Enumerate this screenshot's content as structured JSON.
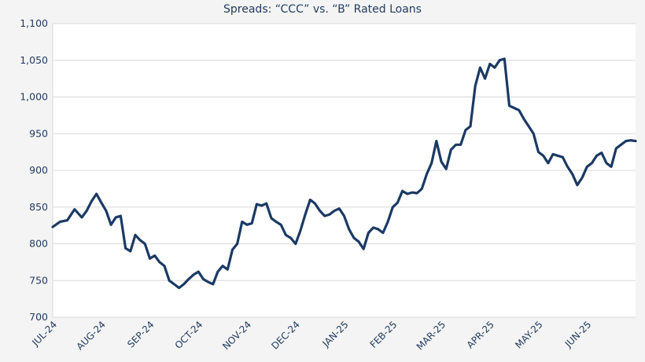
{
  "chart_data": {
    "type": "line",
    "title": "Spreads: “CCC” vs. “B” Rated Loans",
    "xlabel": "",
    "ylabel": "",
    "ylim": [
      700,
      1100
    ],
    "yticks": [
      "1,100",
      "1,050",
      "1,000",
      "950",
      "900",
      "850",
      "800",
      "750",
      "700"
    ],
    "xticks": [
      "JUL-24",
      "AUG-24",
      "SEP-24",
      "OCT-24",
      "NOV-24",
      "DEC-24",
      "JAN-25",
      "FEB-25",
      "MAR-25",
      "APR-25",
      "MAY-25",
      "JUN-25"
    ],
    "grid": true,
    "colors": {
      "line": "#1b3a64",
      "grid": "#d9d9d9",
      "plot_bg": "#ffffff",
      "page_bg": "#f4f4f4"
    },
    "series": [
      {
        "x": [
          0,
          0.15,
          0.3,
          0.45,
          0.6,
          0.7,
          0.8,
          0.9,
          1.0,
          1.1,
          1.2,
          1.3,
          1.4,
          1.5,
          1.6,
          1.7,
          1.8,
          1.9,
          2.0,
          2.1,
          2.2,
          2.3,
          2.4,
          2.5,
          2.6,
          2.7,
          2.8,
          2.9,
          3.0,
          3.1,
          3.2,
          3.3,
          3.4,
          3.5,
          3.6,
          3.7,
          3.8,
          3.9,
          4.0,
          4.1,
          4.2,
          4.3,
          4.4,
          4.5,
          4.6,
          4.7,
          4.8,
          4.9,
          5.0,
          5.1,
          5.2,
          5.3,
          5.4,
          5.5,
          5.6,
          5.7,
          5.8,
          5.9,
          6.0,
          6.1,
          6.2,
          6.3,
          6.4,
          6.5,
          6.6,
          6.7,
          6.8,
          6.9,
          7.0,
          7.1,
          7.2,
          7.3,
          7.4,
          7.5,
          7.6,
          7.7,
          7.8,
          7.9,
          8.0,
          8.1,
          8.2,
          8.3,
          8.4,
          8.5,
          8.6,
          8.7,
          8.8,
          8.9,
          9.0,
          9.1,
          9.2,
          9.3,
          9.4,
          9.5,
          9.6,
          9.7,
          9.8,
          9.9,
          10.0,
          10.1,
          10.2,
          10.3,
          10.4,
          10.5,
          10.6,
          10.7,
          10.8,
          10.9,
          11.0,
          11.1,
          11.2,
          11.3,
          11.4,
          11.5,
          11.6,
          11.7,
          11.8,
          11.9,
          12.0
        ],
        "values": [
          823,
          830,
          832,
          847,
          836,
          845,
          858,
          868,
          856,
          845,
          826,
          836,
          838,
          794,
          790,
          812,
          805,
          800,
          780,
          784,
          775,
          770,
          750,
          745,
          740,
          745,
          752,
          758,
          762,
          752,
          748,
          745,
          762,
          770,
          765,
          792,
          800,
          830,
          826,
          828,
          854,
          852,
          855,
          835,
          830,
          826,
          812,
          808,
          800,
          818,
          840,
          860,
          855,
          845,
          838,
          840,
          845,
          848,
          838,
          820,
          808,
          803,
          793,
          815,
          822,
          820,
          815,
          830,
          850,
          856,
          872,
          868,
          870,
          869,
          875,
          895,
          910,
          940,
          912,
          902,
          928,
          935,
          935,
          955,
          960,
          1015,
          1040,
          1025,
          1045,
          1040,
          1050,
          1052,
          988,
          985,
          982,
          970,
          960,
          950,
          925,
          920,
          910,
          922,
          920,
          918,
          905,
          895,
          880,
          890,
          905,
          910,
          920,
          924,
          910,
          905,
          930,
          935,
          940,
          941,
          940
        ]
      }
    ]
  }
}
